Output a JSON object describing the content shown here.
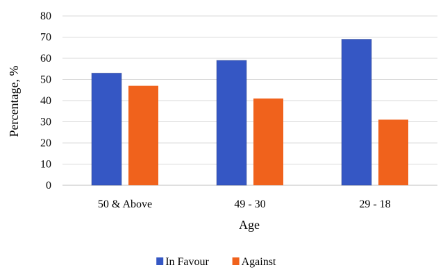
{
  "chart_data": {
    "type": "bar",
    "title": "",
    "xlabel": "Age",
    "ylabel": "Percentage, %",
    "categories": [
      "50 & Above",
      "49 - 30",
      "29 - 18"
    ],
    "series": [
      {
        "name": "In Favour",
        "color": "#3557c4",
        "values": [
          53,
          59,
          69
        ]
      },
      {
        "name": "Against",
        "color": "#f0621c",
        "values": [
          47,
          41,
          31
        ]
      }
    ],
    "ylim": [
      0,
      80
    ],
    "yticks": [
      0,
      10,
      20,
      30,
      40,
      50,
      60,
      70,
      80
    ],
    "grid": true,
    "legend_position": "bottom"
  }
}
